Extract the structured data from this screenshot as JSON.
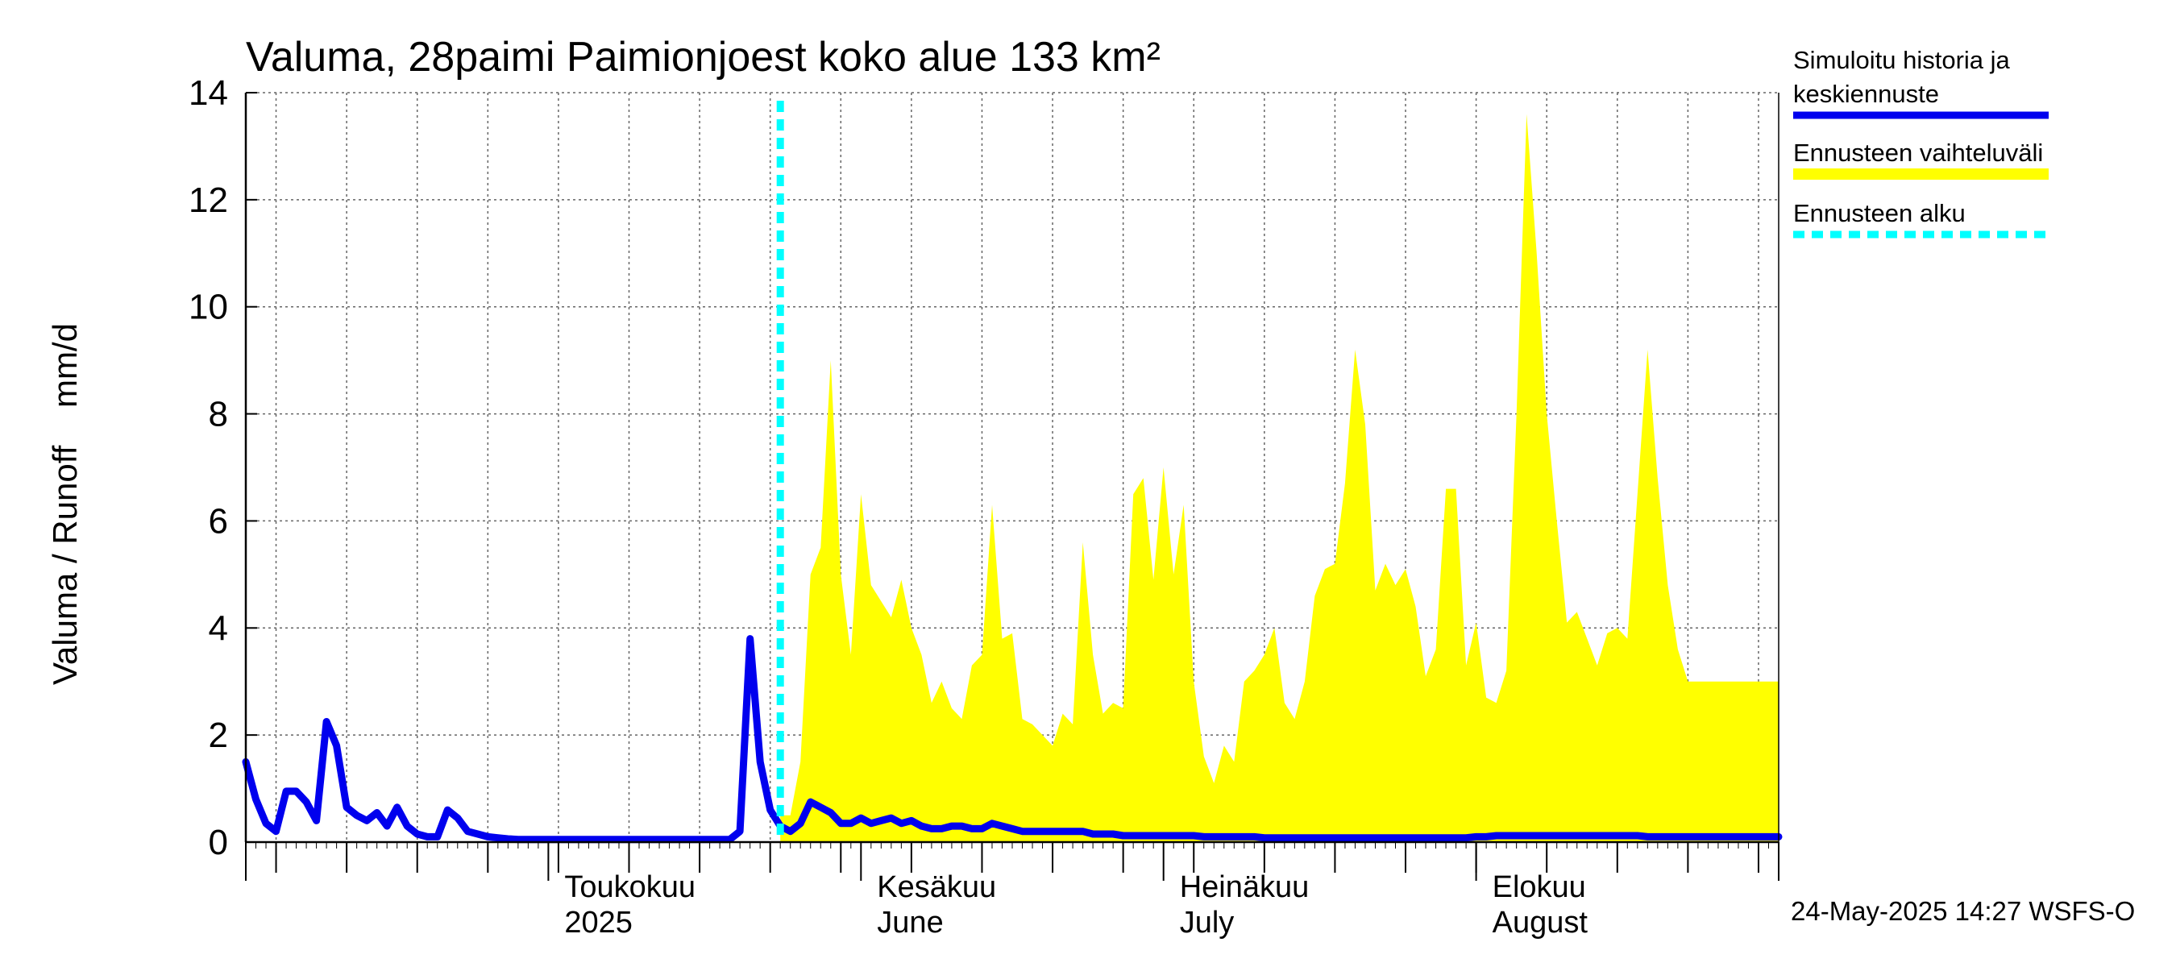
{
  "chart_data": {
    "type": "area",
    "title": "Valuma, 28paimi Paimionjoest koko alue 133 km²",
    "ylabel": "Valuma / Runoff    mm/d",
    "ylim": [
      0,
      14
    ],
    "yticks": [
      "0",
      "2",
      "4",
      "6",
      "8",
      "10",
      "12",
      "14"
    ],
    "x_start": "2025-04-01",
    "x_end": "2025-08-31",
    "month_labels": [
      {
        "date": "2025-05-01",
        "fi": "Toukokuu",
        "en": "2025"
      },
      {
        "date": "2025-06-01",
        "fi": "Kesäkuu",
        "en": "June"
      },
      {
        "date": "2025-07-01",
        "fi": "Heinäkuu",
        "en": "July"
      },
      {
        "date": "2025-08-01",
        "fi": "Elokuu",
        "en": "August"
      }
    ],
    "forecast_start": "2025-05-24",
    "grid": true,
    "legend_position": "right",
    "series": [
      {
        "name": "Simuloitu historia ja keskiennuste",
        "color": "#0000ee",
        "points": [
          [
            "2025-04-01",
            1.5
          ],
          [
            "2025-04-02",
            0.8
          ],
          [
            "2025-04-03",
            0.35
          ],
          [
            "2025-04-04",
            0.2
          ],
          [
            "2025-04-05",
            0.95
          ],
          [
            "2025-04-06",
            0.95
          ],
          [
            "2025-04-07",
            0.75
          ],
          [
            "2025-04-08",
            0.4
          ],
          [
            "2025-04-09",
            2.25
          ],
          [
            "2025-04-10",
            1.8
          ],
          [
            "2025-04-11",
            0.65
          ],
          [
            "2025-04-12",
            0.5
          ],
          [
            "2025-04-13",
            0.4
          ],
          [
            "2025-04-14",
            0.55
          ],
          [
            "2025-04-15",
            0.3
          ],
          [
            "2025-04-16",
            0.65
          ],
          [
            "2025-04-17",
            0.3
          ],
          [
            "2025-04-18",
            0.15
          ],
          [
            "2025-04-19",
            0.1
          ],
          [
            "2025-04-20",
            0.1
          ],
          [
            "2025-04-21",
            0.6
          ],
          [
            "2025-04-22",
            0.45
          ],
          [
            "2025-04-23",
            0.2
          ],
          [
            "2025-04-24",
            0.15
          ],
          [
            "2025-04-25",
            0.1
          ],
          [
            "2025-04-26",
            0.08
          ],
          [
            "2025-04-27",
            0.06
          ],
          [
            "2025-04-28",
            0.05
          ],
          [
            "2025-04-29",
            0.05
          ],
          [
            "2025-04-30",
            0.05
          ],
          [
            "2025-05-01",
            0.05
          ],
          [
            "2025-05-02",
            0.05
          ],
          [
            "2025-05-03",
            0.05
          ],
          [
            "2025-05-04",
            0.05
          ],
          [
            "2025-05-05",
            0.05
          ],
          [
            "2025-05-06",
            0.05
          ],
          [
            "2025-05-07",
            0.05
          ],
          [
            "2025-05-08",
            0.05
          ],
          [
            "2025-05-09",
            0.05
          ],
          [
            "2025-05-10",
            0.05
          ],
          [
            "2025-05-11",
            0.05
          ],
          [
            "2025-05-12",
            0.05
          ],
          [
            "2025-05-13",
            0.05
          ],
          [
            "2025-05-14",
            0.05
          ],
          [
            "2025-05-15",
            0.05
          ],
          [
            "2025-05-16",
            0.05
          ],
          [
            "2025-05-17",
            0.05
          ],
          [
            "2025-05-18",
            0.05
          ],
          [
            "2025-05-19",
            0.05
          ],
          [
            "2025-05-20",
            0.2
          ],
          [
            "2025-05-21",
            3.8
          ],
          [
            "2025-05-22",
            1.5
          ],
          [
            "2025-05-23",
            0.6
          ],
          [
            "2025-05-24",
            0.3
          ],
          [
            "2025-05-25",
            0.2
          ],
          [
            "2025-05-26",
            0.35
          ],
          [
            "2025-05-27",
            0.75
          ],
          [
            "2025-05-28",
            0.65
          ],
          [
            "2025-05-29",
            0.55
          ],
          [
            "2025-05-30",
            0.35
          ],
          [
            "2025-05-31",
            0.35
          ],
          [
            "2025-06-01",
            0.45
          ],
          [
            "2025-06-02",
            0.35
          ],
          [
            "2025-06-03",
            0.4
          ],
          [
            "2025-06-04",
            0.45
          ],
          [
            "2025-06-05",
            0.35
          ],
          [
            "2025-06-06",
            0.4
          ],
          [
            "2025-06-07",
            0.3
          ],
          [
            "2025-06-08",
            0.25
          ],
          [
            "2025-06-09",
            0.25
          ],
          [
            "2025-06-10",
            0.3
          ],
          [
            "2025-06-11",
            0.3
          ],
          [
            "2025-06-12",
            0.25
          ],
          [
            "2025-06-13",
            0.25
          ],
          [
            "2025-06-14",
            0.35
          ],
          [
            "2025-06-15",
            0.3
          ],
          [
            "2025-06-16",
            0.25
          ],
          [
            "2025-06-17",
            0.2
          ],
          [
            "2025-06-18",
            0.2
          ],
          [
            "2025-06-19",
            0.2
          ],
          [
            "2025-06-20",
            0.2
          ],
          [
            "2025-06-21",
            0.2
          ],
          [
            "2025-06-22",
            0.2
          ],
          [
            "2025-06-23",
            0.2
          ],
          [
            "2025-06-24",
            0.15
          ],
          [
            "2025-06-25",
            0.15
          ],
          [
            "2025-06-26",
            0.15
          ],
          [
            "2025-06-27",
            0.12
          ],
          [
            "2025-06-28",
            0.12
          ],
          [
            "2025-06-29",
            0.12
          ],
          [
            "2025-06-30",
            0.12
          ],
          [
            "2025-07-01",
            0.12
          ],
          [
            "2025-07-02",
            0.12
          ],
          [
            "2025-07-03",
            0.12
          ],
          [
            "2025-07-04",
            0.12
          ],
          [
            "2025-07-05",
            0.1
          ],
          [
            "2025-07-06",
            0.1
          ],
          [
            "2025-07-07",
            0.1
          ],
          [
            "2025-07-08",
            0.1
          ],
          [
            "2025-07-09",
            0.1
          ],
          [
            "2025-07-10",
            0.1
          ],
          [
            "2025-07-11",
            0.08
          ],
          [
            "2025-07-12",
            0.08
          ],
          [
            "2025-07-13",
            0.08
          ],
          [
            "2025-07-14",
            0.08
          ],
          [
            "2025-07-15",
            0.08
          ],
          [
            "2025-07-16",
            0.08
          ],
          [
            "2025-07-17",
            0.08
          ],
          [
            "2025-07-18",
            0.08
          ],
          [
            "2025-07-19",
            0.08
          ],
          [
            "2025-07-20",
            0.08
          ],
          [
            "2025-07-21",
            0.08
          ],
          [
            "2025-07-22",
            0.08
          ],
          [
            "2025-07-23",
            0.08
          ],
          [
            "2025-07-24",
            0.08
          ],
          [
            "2025-07-25",
            0.08
          ],
          [
            "2025-07-26",
            0.08
          ],
          [
            "2025-07-27",
            0.08
          ],
          [
            "2025-07-28",
            0.08
          ],
          [
            "2025-07-29",
            0.08
          ],
          [
            "2025-07-30",
            0.08
          ],
          [
            "2025-07-31",
            0.08
          ],
          [
            "2025-08-01",
            0.1
          ],
          [
            "2025-08-02",
            0.1
          ],
          [
            "2025-08-03",
            0.12
          ],
          [
            "2025-08-04",
            0.12
          ],
          [
            "2025-08-05",
            0.12
          ],
          [
            "2025-08-06",
            0.12
          ],
          [
            "2025-08-07",
            0.12
          ],
          [
            "2025-08-08",
            0.12
          ],
          [
            "2025-08-09",
            0.12
          ],
          [
            "2025-08-10",
            0.12
          ],
          [
            "2025-08-11",
            0.12
          ],
          [
            "2025-08-12",
            0.12
          ],
          [
            "2025-08-13",
            0.12
          ],
          [
            "2025-08-14",
            0.12
          ],
          [
            "2025-08-15",
            0.12
          ],
          [
            "2025-08-16",
            0.12
          ],
          [
            "2025-08-17",
            0.12
          ],
          [
            "2025-08-18",
            0.1
          ],
          [
            "2025-08-19",
            0.1
          ],
          [
            "2025-08-20",
            0.1
          ],
          [
            "2025-08-21",
            0.1
          ],
          [
            "2025-08-22",
            0.1
          ],
          [
            "2025-08-23",
            0.1
          ],
          [
            "2025-08-24",
            0.1
          ],
          [
            "2025-08-25",
            0.1
          ],
          [
            "2025-08-26",
            0.1
          ],
          [
            "2025-08-27",
            0.1
          ],
          [
            "2025-08-28",
            0.1
          ],
          [
            "2025-08-29",
            0.1
          ],
          [
            "2025-08-30",
            0.1
          ],
          [
            "2025-08-31",
            0.1
          ]
        ]
      },
      {
        "name": "Ennusteen vaihteluväli",
        "color": "#ffff00",
        "upper": [
          [
            "2025-05-24",
            0.5
          ],
          [
            "2025-05-25",
            0.5
          ],
          [
            "2025-05-26",
            1.5
          ],
          [
            "2025-05-27",
            5.0
          ],
          [
            "2025-05-28",
            5.5
          ],
          [
            "2025-05-29",
            9.0
          ],
          [
            "2025-05-30",
            5.0
          ],
          [
            "2025-05-31",
            3.5
          ],
          [
            "2025-06-01",
            6.5
          ],
          [
            "2025-06-02",
            4.8
          ],
          [
            "2025-06-03",
            4.5
          ],
          [
            "2025-06-04",
            4.2
          ],
          [
            "2025-06-05",
            4.9
          ],
          [
            "2025-06-06",
            4.0
          ],
          [
            "2025-06-07",
            3.5
          ],
          [
            "2025-06-08",
            2.6
          ],
          [
            "2025-06-09",
            3.0
          ],
          [
            "2025-06-10",
            2.5
          ],
          [
            "2025-06-11",
            2.3
          ],
          [
            "2025-06-12",
            3.3
          ],
          [
            "2025-06-13",
            3.5
          ],
          [
            "2025-06-14",
            6.3
          ],
          [
            "2025-06-15",
            3.8
          ],
          [
            "2025-06-16",
            3.9
          ],
          [
            "2025-06-17",
            2.3
          ],
          [
            "2025-06-18",
            2.2
          ],
          [
            "2025-06-19",
            2.0
          ],
          [
            "2025-06-20",
            1.8
          ],
          [
            "2025-06-21",
            2.4
          ],
          [
            "2025-06-22",
            2.2
          ],
          [
            "2025-06-23",
            5.6
          ],
          [
            "2025-06-24",
            3.5
          ],
          [
            "2025-06-25",
            2.4
          ],
          [
            "2025-06-26",
            2.6
          ],
          [
            "2025-06-27",
            2.5
          ],
          [
            "2025-06-28",
            6.5
          ],
          [
            "2025-06-29",
            6.8
          ],
          [
            "2025-06-30",
            4.9
          ],
          [
            "2025-07-01",
            7.0
          ],
          [
            "2025-07-02",
            5.0
          ],
          [
            "2025-07-03",
            6.3
          ],
          [
            "2025-07-04",
            3.0
          ],
          [
            "2025-07-05",
            1.6
          ],
          [
            "2025-07-06",
            1.1
          ],
          [
            "2025-07-07",
            1.8
          ],
          [
            "2025-07-08",
            1.5
          ],
          [
            "2025-07-09",
            3.0
          ],
          [
            "2025-07-10",
            3.2
          ],
          [
            "2025-07-11",
            3.5
          ],
          [
            "2025-07-12",
            4.0
          ],
          [
            "2025-07-13",
            2.6
          ],
          [
            "2025-07-14",
            2.3
          ],
          [
            "2025-07-15",
            3.0
          ],
          [
            "2025-07-16",
            4.6
          ],
          [
            "2025-07-17",
            5.1
          ],
          [
            "2025-07-18",
            5.2
          ],
          [
            "2025-07-19",
            6.7
          ],
          [
            "2025-07-20",
            9.2
          ],
          [
            "2025-07-21",
            7.8
          ],
          [
            "2025-07-22",
            4.7
          ],
          [
            "2025-07-23",
            5.2
          ],
          [
            "2025-07-24",
            4.8
          ],
          [
            "2025-07-25",
            5.1
          ],
          [
            "2025-07-26",
            4.4
          ],
          [
            "2025-07-27",
            3.1
          ],
          [
            "2025-07-28",
            3.6
          ],
          [
            "2025-07-29",
            6.6
          ],
          [
            "2025-07-30",
            6.6
          ],
          [
            "2025-07-31",
            3.3
          ],
          [
            "2025-08-01",
            4.1
          ],
          [
            "2025-08-02",
            2.7
          ],
          [
            "2025-08-03",
            2.6
          ],
          [
            "2025-08-04",
            3.2
          ],
          [
            "2025-08-05",
            8.0
          ],
          [
            "2025-08-06",
            13.6
          ],
          [
            "2025-08-07",
            11.0
          ],
          [
            "2025-08-08",
            8.0
          ],
          [
            "2025-08-09",
            6.0
          ],
          [
            "2025-08-10",
            4.1
          ],
          [
            "2025-08-11",
            4.3
          ],
          [
            "2025-08-12",
            3.8
          ],
          [
            "2025-08-13",
            3.3
          ],
          [
            "2025-08-14",
            3.9
          ],
          [
            "2025-08-15",
            4.0
          ],
          [
            "2025-08-16",
            3.8
          ],
          [
            "2025-08-17",
            6.5
          ],
          [
            "2025-08-18",
            9.2
          ],
          [
            "2025-08-19",
            6.8
          ],
          [
            "2025-08-20",
            4.8
          ],
          [
            "2025-08-21",
            3.6
          ],
          [
            "2025-08-22",
            3.0
          ],
          [
            "2025-08-23",
            3.0
          ],
          [
            "2025-08-24",
            3.0
          ],
          [
            "2025-08-25",
            3.0
          ],
          [
            "2025-08-26",
            3.0
          ],
          [
            "2025-08-27",
            3.0
          ],
          [
            "2025-08-28",
            3.0
          ],
          [
            "2025-08-29",
            3.0
          ],
          [
            "2025-08-30",
            3.0
          ],
          [
            "2025-08-31",
            3.0
          ]
        ],
        "lower": 0.0
      },
      {
        "name": "Ennusteen alku",
        "color": "#00ffff",
        "style": "dashed"
      }
    ]
  },
  "legend": {
    "items": [
      {
        "label_line1": "Simuloitu historia ja",
        "label_line2": "keskiennuste",
        "color": "#0000ee",
        "style": "solid"
      },
      {
        "label_line1": "Ennusteen vaihteluväli",
        "label_line2": "",
        "color": "#ffff00",
        "style": "solid"
      },
      {
        "label_line1": "Ennusteen alku",
        "label_line2": "",
        "color": "#00ffff",
        "style": "dashed"
      }
    ]
  },
  "footer": {
    "timestamp": "24-May-2025 14:27 WSFS-O"
  }
}
